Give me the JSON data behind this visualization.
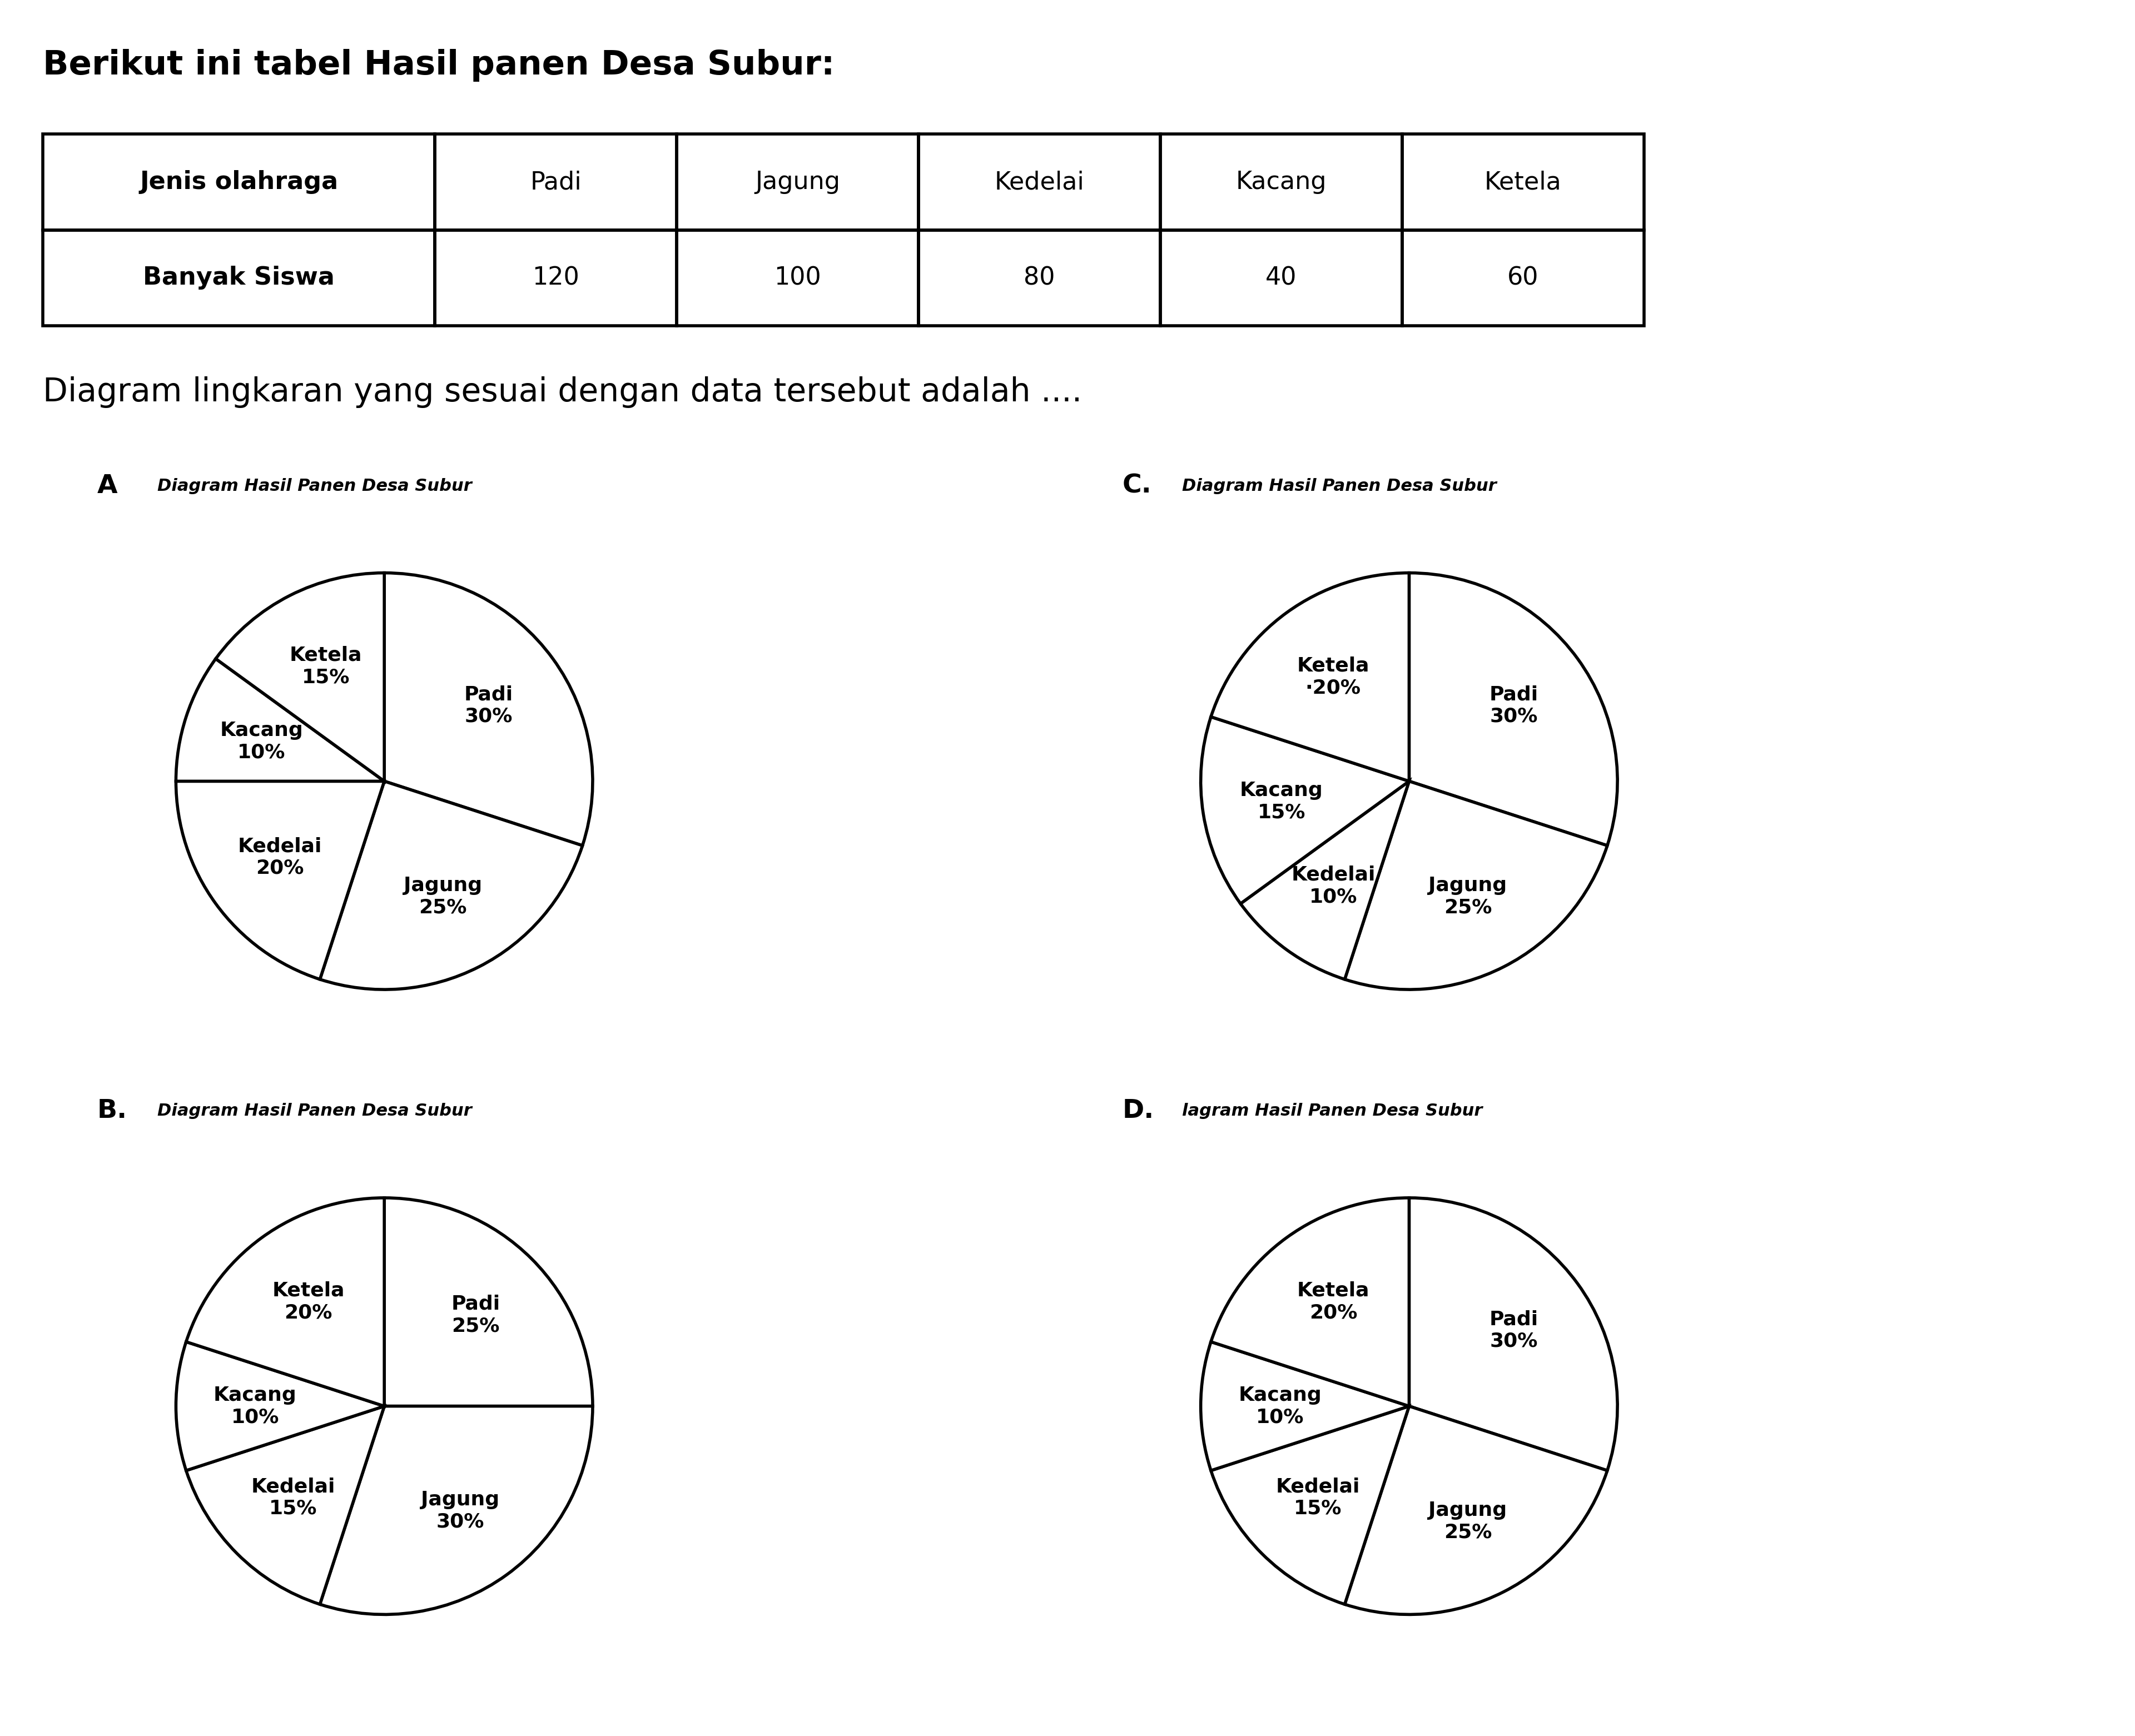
{
  "title_text": "Berikut ini tabel Hasil panen Desa Subur:",
  "table_headers": [
    "Jenis olahraga",
    "Padi",
    "Jagung",
    "Kedelai",
    "Kacang",
    "Ketela"
  ],
  "table_row1_label": "Banyak Siswa",
  "table_values": [
    120,
    100,
    80,
    40,
    60
  ],
  "question_text": "Diagram lingkaran yang sesuai dengan data tersebut adalah ....",
  "bg_color": "#ffffff",
  "charts": {
    "A": {
      "label": "A",
      "title": "Diagram Hasil Panen Desa Subur",
      "values": [
        30,
        25,
        20,
        10,
        15
      ],
      "labels": [
        "Padi\n30%",
        "Jagung\n25%",
        "Kedelai\n20%",
        "Kacang\n10%",
        "Ketela\n15%"
      ],
      "startangle": 90
    },
    "B": {
      "label": "B.",
      "title": "Diagram Hasil Panen Desa Subur",
      "values": [
        25,
        30,
        15,
        10,
        20
      ],
      "labels": [
        "Padi\n25%",
        "Jagung\n30%",
        "Kedelai\n15%",
        "Kacang\n10%",
        "Ketela\n20%"
      ],
      "startangle": 90
    },
    "C": {
      "label": "C.",
      "title": "Diagram Hasil Panen Desa Subur",
      "values": [
        30,
        25,
        10,
        15,
        20
      ],
      "labels": [
        "Padi\n30%",
        "Jagung\n25%",
        "Kedelai\n10%",
        "Kacang\n15%",
        "Ketela\n·20%"
      ],
      "startangle": 90
    },
    "D": {
      "label": "D.",
      "title": "lagram Hasil Panen Desa Subur",
      "values": [
        30,
        25,
        15,
        10,
        20
      ],
      "labels": [
        "Padi\n30%",
        "Jagung\n25%",
        "Kedelai\n15%",
        "Kacang\n10%",
        "Ketela\n20%"
      ],
      "startangle": 90
    }
  }
}
